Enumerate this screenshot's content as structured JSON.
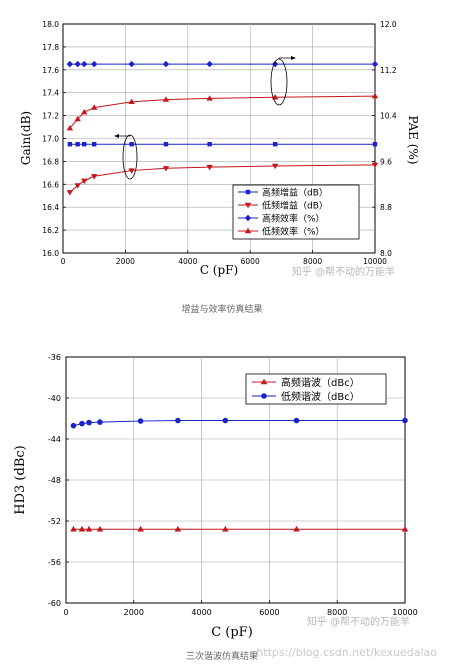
{
  "chart_data": [
    {
      "type": "line",
      "xlabel": "C (pF)",
      "ylabel_left": "Gain(dB)",
      "ylabel_right": "PAE (%)",
      "xlim": [
        0,
        10000
      ],
      "ylim_left": [
        16.0,
        18.0
      ],
      "ylim_right": [
        8.0,
        12.0
      ],
      "x_ticks": [
        0,
        2000,
        4000,
        6000,
        8000,
        10000
      ],
      "y_ticks_left": [
        "16.0",
        "16.2",
        "16.4",
        "16.6",
        "16.8",
        "17.0",
        "17.2",
        "17.4",
        "17.6",
        "17.8",
        "18.0"
      ],
      "y_ticks_right": [
        "8.0",
        "8.8",
        "9.6",
        "10.4",
        "11.2",
        "12.0"
      ],
      "grid": true,
      "legend_position": "bottom-right",
      "series": [
        {
          "name": "高频增益（dB）",
          "axis": "left",
          "marker": "square",
          "color": "#1a22c8",
          "x": [
            220,
            470,
            680,
            1000,
            2200,
            3300,
            4700,
            6800,
            10000
          ],
          "values": [
            16.95,
            16.95,
            16.95,
            16.95,
            16.95,
            16.95,
            16.95,
            16.95,
            16.95
          ]
        },
        {
          "name": "低频增益（dB）",
          "axis": "left",
          "marker": "triangle-down",
          "color": "#c8141a",
          "x": [
            220,
            470,
            680,
            1000,
            2200,
            3300,
            4700,
            6800,
            10000
          ],
          "values": [
            16.53,
            16.59,
            16.63,
            16.67,
            16.72,
            16.74,
            16.75,
            16.76,
            16.77
          ]
        },
        {
          "name": "高频效率（%）",
          "axis": "right",
          "marker": "diamond",
          "color": "#1a22c8",
          "x": [
            220,
            470,
            680,
            1000,
            2200,
            3300,
            4700,
            6800,
            10000
          ],
          "values": [
            11.3,
            11.3,
            11.3,
            11.3,
            11.3,
            11.3,
            11.3,
            11.3,
            11.3
          ]
        },
        {
          "name": "低频效率（%）",
          "axis": "right",
          "marker": "triangle-up",
          "color": "#c8141a",
          "x": [
            220,
            470,
            680,
            1000,
            2200,
            3300,
            4700,
            6800,
            10000
          ],
          "values": [
            10.18,
            10.34,
            10.46,
            10.54,
            10.64,
            10.68,
            10.7,
            10.72,
            10.74
          ]
        }
      ]
    },
    {
      "type": "line",
      "xlabel": "C (pF)",
      "ylabel": "HD3 (dBc)",
      "xlim": [
        0,
        10000
      ],
      "ylim": [
        -60,
        -36
      ],
      "x_ticks": [
        0,
        2000,
        4000,
        6000,
        8000,
        10000
      ],
      "y_ticks": [
        "-36",
        "-40",
        "-44",
        "-48",
        "-52",
        "-56",
        "-60"
      ],
      "grid": true,
      "legend_position": "top-right",
      "series": [
        {
          "name": "高频谐波（dBc）",
          "marker": "triangle-up",
          "color": "#c8141a",
          "x": [
            220,
            470,
            680,
            1000,
            2200,
            3300,
            4700,
            6800,
            10000
          ],
          "values": [
            -52.8,
            -52.8,
            -52.8,
            -52.8,
            -52.8,
            -52.8,
            -52.8,
            -52.8,
            -52.8
          ]
        },
        {
          "name": "低频谐波（dBc）",
          "marker": "circle",
          "color": "#1a22c8",
          "x": [
            220,
            470,
            680,
            1000,
            2200,
            3300,
            4700,
            6800,
            10000
          ],
          "values": [
            -42.7,
            -42.5,
            -42.4,
            -42.35,
            -42.25,
            -42.2,
            -42.2,
            -42.2,
            -42.2
          ]
        }
      ]
    }
  ],
  "captions": {
    "chart1": "增益与效率仿真结果",
    "chart2": "三次谐波仿真结果"
  },
  "watermarks": {
    "chart1": "知乎 @帮不动的万能羊",
    "chart2": "知乎 @帮不动的万能羊",
    "url": "https://blog.csdn.net/kexuedalao"
  }
}
